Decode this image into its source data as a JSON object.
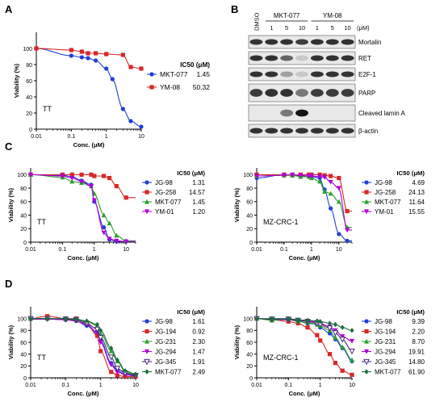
{
  "figure": {
    "panel_letters": {
      "A": "A",
      "B": "B",
      "C": "C",
      "D": "D"
    },
    "ylabel": "Viability (%)",
    "xlabel": "Conc. (μM)",
    "x_ticks": [
      "0.01",
      "0.1",
      "1",
      "10"
    ],
    "y_ticks": [
      "0",
      "20",
      "40",
      "60",
      "80",
      "100"
    ],
    "ic50_header": "IC50 (μM)"
  },
  "blot": {
    "lane_header_dmso": "DMSO",
    "group_labels": [
      "MKT-077",
      "YM-08"
    ],
    "lane_concs": [
      "1",
      "5",
      "10",
      "1",
      "5",
      "10"
    ],
    "unit": "(μM)",
    "bands": [
      "Mortalin",
      "RET",
      "E2F-1",
      "PARP",
      "Cleaved lamin A",
      "β-actin"
    ]
  },
  "chart_data": [
    {
      "panel": "A",
      "type": "scatter",
      "cell_line": "TT",
      "xlabel": "Conc. (μM)",
      "ylabel": "Viability (%)",
      "xscale": "log",
      "xlim": [
        0.01,
        10
      ],
      "ylim": [
        0,
        120
      ],
      "legend": "right",
      "series": [
        {
          "name": "MKT-077",
          "ic50": "1.45",
          "color": "#1f3fd6",
          "marker": "circle",
          "x": [
            0.01,
            0.1,
            0.2,
            0.3,
            0.5,
            1,
            1.5,
            3,
            5,
            10
          ],
          "y": [
            100,
            91,
            89,
            88,
            85,
            75,
            62,
            25,
            10,
            3
          ]
        },
        {
          "name": "YM-08",
          "ic50": "50.32",
          "color": "#d62828",
          "marker": "square",
          "x": [
            0.01,
            0.1,
            0.2,
            0.3,
            0.5,
            1,
            3,
            5,
            10
          ],
          "y": [
            100,
            98,
            96,
            94,
            94,
            93,
            92,
            77,
            75
          ]
        }
      ]
    },
    {
      "panel": "C-left",
      "type": "scatter",
      "cell_line": "TT",
      "xlabel": "Conc. (μM)",
      "ylabel": "Viability (%)",
      "xscale": "log",
      "xlim": [
        0.01,
        20
      ],
      "ylim": [
        0,
        110
      ],
      "legend": "right",
      "series": [
        {
          "name": "JG-98",
          "ic50": "1.31",
          "color": "#1f3fd6",
          "marker": "circle",
          "x": [
            0.01,
            0.1,
            0.2,
            0.4,
            0.8,
            1,
            2,
            3,
            5,
            10
          ],
          "y": [
            100,
            99,
            97,
            91,
            85,
            60,
            22,
            4,
            1,
            1
          ]
        },
        {
          "name": "JG-258",
          "ic50": "14.57",
          "color": "#d62828",
          "marker": "square",
          "x": [
            0.01,
            0.1,
            0.2,
            0.4,
            0.8,
            1,
            2,
            3,
            5,
            10
          ],
          "y": [
            100,
            100,
            100,
            100,
            100,
            98,
            98,
            95,
            83,
            66
          ]
        },
        {
          "name": "MKT-077",
          "ic50": "1.45",
          "color": "#2ca02c",
          "marker": "triangle-up",
          "x": [
            0.01,
            0.1,
            0.2,
            0.4,
            0.8,
            1,
            2,
            3,
            5,
            10
          ],
          "y": [
            100,
            96,
            90,
            88,
            83,
            72,
            40,
            28,
            10,
            2
          ]
        },
        {
          "name": "YM-01",
          "ic50": "1.20",
          "color": "#b000d8",
          "marker": "triangle-down",
          "x": [
            0.01,
            0.1,
            0.2,
            0.4,
            0.8,
            1,
            2,
            3,
            5,
            10
          ],
          "y": [
            100,
            98,
            95,
            90,
            83,
            62,
            14,
            5,
            2,
            1
          ]
        }
      ]
    },
    {
      "panel": "C-right",
      "type": "scatter",
      "cell_line": "MZ-CRC-1",
      "xlabel": "Conc. (μM)",
      "ylabel": "Viability (%)",
      "xscale": "log",
      "xlim": [
        0.01,
        30
      ],
      "ylim": [
        0,
        110
      ],
      "legend": "right",
      "series": [
        {
          "name": "JG-98",
          "ic50": "4.69",
          "color": "#1f3fd6",
          "marker": "circle",
          "x": [
            0.01,
            0.1,
            0.2,
            0.4,
            0.8,
            1,
            2,
            3,
            5,
            10,
            20
          ],
          "y": [
            95,
            100,
            99,
            98,
            98,
            97,
            95,
            78,
            50,
            12,
            2
          ]
        },
        {
          "name": "JG-258",
          "ic50": "24.13",
          "color": "#d62828",
          "marker": "square",
          "x": [
            0.01,
            0.1,
            0.2,
            0.4,
            0.8,
            1,
            2,
            3,
            5,
            10,
            20
          ],
          "y": [
            100,
            100,
            99,
            100,
            100,
            100,
            100,
            99,
            98,
            95,
            46
          ]
        },
        {
          "name": "MKT-077",
          "ic50": "11.64",
          "color": "#2ca02c",
          "marker": "triangle-up",
          "x": [
            0.01,
            0.1,
            0.2,
            0.4,
            0.8,
            1,
            2,
            3,
            5,
            10,
            20
          ],
          "y": [
            98,
            99,
            99,
            97,
            97,
            95,
            90,
            75,
            72,
            60,
            22
          ]
        },
        {
          "name": "YM-01",
          "ic50": "15.55",
          "color": "#b000d8",
          "marker": "triangle-down",
          "x": [
            0.01,
            0.1,
            0.2,
            0.4,
            0.8,
            1,
            2,
            3,
            5,
            10,
            20
          ],
          "y": [
            98,
            99,
            100,
            99,
            98,
            98,
            97,
            96,
            89,
            80,
            18
          ]
        }
      ]
    },
    {
      "panel": "D-left",
      "type": "scatter",
      "cell_line": "TT",
      "xlabel": "Conc. (μM)",
      "ylabel": "Viability (%)",
      "xscale": "log",
      "xlim": [
        0.01,
        10
      ],
      "ylim": [
        0,
        120
      ],
      "legend": "right",
      "series": [
        {
          "name": "JG-98",
          "ic50": "1.61",
          "color": "#1f3fd6",
          "marker": "circle",
          "x": [
            0.01,
            0.03,
            0.1,
            0.2,
            0.4,
            0.8,
            1,
            2,
            3,
            5,
            10
          ],
          "y": [
            99,
            100,
            98,
            96,
            88,
            75,
            63,
            25,
            12,
            6,
            4
          ]
        },
        {
          "name": "JG-194",
          "ic50": "0.92",
          "color": "#d62828",
          "marker": "square",
          "x": [
            0.01,
            0.03,
            0.1,
            0.2,
            0.4,
            0.8,
            1,
            2,
            3,
            5,
            10
          ],
          "y": [
            100,
            104,
            100,
            100,
            92,
            71,
            45,
            10,
            4,
            2,
            2
          ]
        },
        {
          "name": "JG-231",
          "ic50": "2.30",
          "color": "#2ca02c",
          "marker": "triangle-up",
          "x": [
            0.01,
            0.03,
            0.1,
            0.2,
            0.4,
            0.8,
            1,
            2,
            3,
            5,
            10
          ],
          "y": [
            100,
            100,
            99,
            97,
            95,
            88,
            75,
            45,
            28,
            10,
            5
          ]
        },
        {
          "name": "JG-294",
          "ic50": "1.47",
          "color": "#b000d8",
          "marker": "triangle-down",
          "x": [
            0.01,
            0.03,
            0.1,
            0.2,
            0.4,
            0.8,
            1,
            2,
            3,
            5,
            10
          ],
          "y": [
            99,
            99,
            98,
            96,
            90,
            77,
            60,
            22,
            10,
            5,
            3
          ]
        },
        {
          "name": "JG-345",
          "ic50": "1.91",
          "color": "#4b2a7a",
          "marker": "triangle-down-open",
          "x": [
            0.01,
            0.03,
            0.1,
            0.2,
            0.4,
            0.8,
            1,
            2,
            3,
            5,
            10
          ],
          "y": [
            100,
            100,
            99,
            98,
            92,
            82,
            68,
            35,
            16,
            8,
            4
          ]
        },
        {
          "name": "MKT-077",
          "ic50": "2.49",
          "color": "#1b6e3f",
          "marker": "diamond",
          "x": [
            0.01,
            0.03,
            0.1,
            0.2,
            0.4,
            0.8,
            1,
            2,
            3,
            5,
            10
          ],
          "y": [
            100,
            100,
            100,
            99,
            96,
            90,
            80,
            50,
            30,
            12,
            6
          ]
        }
      ]
    },
    {
      "panel": "D-right",
      "type": "scatter",
      "cell_line": "MZ-CRC-1",
      "xlabel": "Conc. (μM)",
      "ylabel": "Viability (%)",
      "xscale": "log",
      "xlim": [
        0.01,
        10
      ],
      "ylim": [
        0,
        120
      ],
      "legend": "right",
      "series": [
        {
          "name": "JG-98",
          "ic50": "9.39",
          "color": "#1f3fd6",
          "marker": "circle",
          "x": [
            0.01,
            0.03,
            0.1,
            0.2,
            0.4,
            0.8,
            1,
            2,
            3,
            5,
            10
          ],
          "y": [
            100,
            98,
            98,
            96,
            92,
            90,
            85,
            75,
            65,
            50,
            28
          ]
        },
        {
          "name": "JG-194",
          "ic50": "2.20",
          "color": "#d62828",
          "marker": "square",
          "x": [
            0.01,
            0.03,
            0.1,
            0.2,
            0.4,
            0.8,
            1,
            2,
            3,
            5,
            10
          ],
          "y": [
            100,
            98,
            95,
            92,
            85,
            72,
            63,
            40,
            25,
            12,
            5
          ]
        },
        {
          "name": "JG-231",
          "ic50": "8.70",
          "color": "#2ca02c",
          "marker": "triangle-up",
          "x": [
            0.01,
            0.03,
            0.1,
            0.2,
            0.4,
            0.8,
            1,
            2,
            3,
            5,
            10
          ],
          "y": [
            100,
            97,
            99,
            95,
            93,
            90,
            88,
            80,
            68,
            52,
            30
          ]
        },
        {
          "name": "JG-294",
          "ic50": "19.91",
          "color": "#b000d8",
          "marker": "triangle-down",
          "x": [
            0.01,
            0.03,
            0.1,
            0.2,
            0.4,
            0.8,
            1,
            2,
            3,
            5,
            10
          ],
          "y": [
            100,
            99,
            98,
            97,
            96,
            94,
            92,
            86,
            80,
            70,
            62
          ]
        },
        {
          "name": "JG-345",
          "ic50": "14.80",
          "color": "#4b2a7a",
          "marker": "triangle-down-open",
          "x": [
            0.01,
            0.03,
            0.1,
            0.2,
            0.4,
            0.8,
            1,
            2,
            3,
            5,
            10
          ],
          "y": [
            100,
            99,
            99,
            97,
            95,
            92,
            90,
            84,
            76,
            65,
            45
          ]
        },
        {
          "name": "MKT-077",
          "ic50": "61.90",
          "color": "#1b6e3f",
          "marker": "diamond",
          "x": [
            0.01,
            0.03,
            0.1,
            0.2,
            0.4,
            0.8,
            1,
            2,
            3,
            5,
            10
          ],
          "y": [
            100,
            100,
            100,
            98,
            97,
            96,
            95,
            92,
            90,
            85,
            80
          ]
        }
      ]
    }
  ]
}
